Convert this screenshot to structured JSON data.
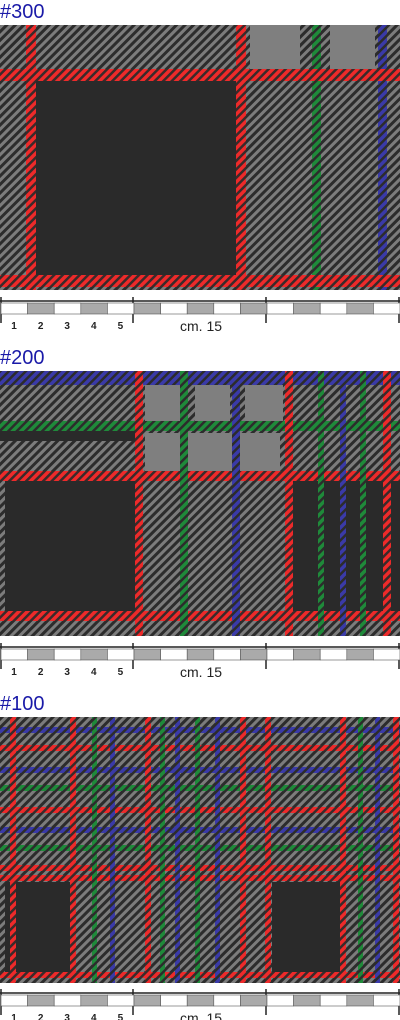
{
  "swatches": [
    {
      "label": "#300",
      "scale": {
        "marks": [
          "1",
          "2",
          "3",
          "4",
          "5"
        ],
        "length": "cm. 15"
      }
    },
    {
      "label": "#200",
      "scale": {
        "marks": [
          "1",
          "2",
          "3",
          "4",
          "5"
        ],
        "length": "cm. 15"
      }
    },
    {
      "label": "#100",
      "scale": {
        "marks": [
          "1",
          "2",
          "3",
          "4",
          "5"
        ],
        "length": "cm. 15"
      }
    }
  ]
}
